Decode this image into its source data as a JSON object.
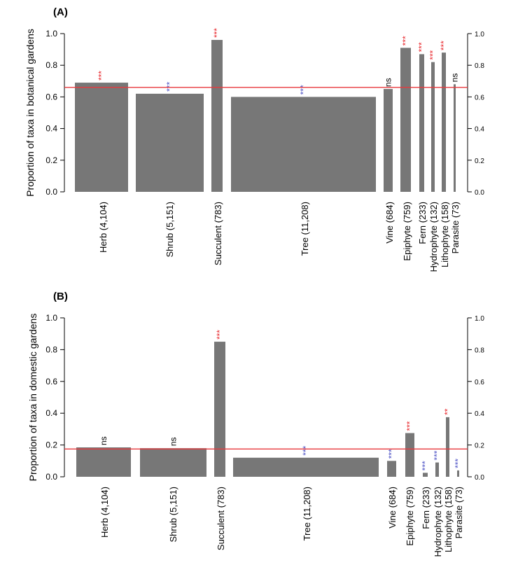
{
  "colors": {
    "bar": "#777777",
    "reference": "#e8383d",
    "sig_high": "#e8262b",
    "sig_low": "#4a4fc4",
    "sig_ns": "#000000"
  },
  "chart_data": [
    {
      "type": "bar",
      "panel_label": "(A)",
      "ylabel": "Proportion of taxa in botanical gardens",
      "ylim": [
        0,
        1
      ],
      "yticks": [
        "0.0",
        "0.2",
        "0.4",
        "0.6",
        "0.8",
        "1.0"
      ],
      "reference_line": 0.66,
      "categories": [
        "Herb (4,104)",
        "Shrub (5,151)",
        "Succulent (783)",
        "Tree (11,208)",
        "Vine (684)",
        "Epiphyte (759)",
        "Fern (233)",
        "Hydrophyte (132)",
        "Lithophyte (158)",
        "Parasite (73)"
      ],
      "sample_sizes": [
        4104,
        5151,
        783,
        11208,
        684,
        759,
        233,
        132,
        158,
        73
      ],
      "values": [
        0.69,
        0.62,
        0.96,
        0.6,
        0.65,
        0.91,
        0.87,
        0.82,
        0.88,
        0.68
      ],
      "significance": [
        "***",
        "***",
        "***",
        "***",
        "ns",
        "***",
        "***",
        "***",
        "***",
        "ns"
      ],
      "significance_dir": [
        "high",
        "low",
        "high",
        "low",
        "ns",
        "high",
        "high",
        "high",
        "high",
        "ns"
      ]
    },
    {
      "type": "bar",
      "panel_label": "(B)",
      "ylabel": "Proportion of taxa in domestic gardens",
      "ylim": [
        0,
        1
      ],
      "yticks": [
        "0.0",
        "0.2",
        "0.4",
        "0.6",
        "0.8",
        "1.0"
      ],
      "reference_line": 0.175,
      "categories": [
        "Herb (4,104)",
        "Shrub (5,151)",
        "Succulent (783)",
        "Tree (11,208)",
        "Vine (684)",
        "Epiphyte (759)",
        "Fern (233)",
        "Hydrophyte (132)",
        "Lithophyte (158)",
        "Parasite (73)"
      ],
      "sample_sizes": [
        4104,
        5151,
        783,
        11208,
        684,
        759,
        233,
        132,
        158,
        73
      ],
      "values": [
        0.185,
        0.18,
        0.85,
        0.12,
        0.1,
        0.275,
        0.025,
        0.09,
        0.375,
        0.04
      ],
      "significance": [
        "ns",
        "ns",
        "***",
        "***",
        "***",
        "***",
        "***",
        "***",
        "**",
        "***"
      ],
      "significance_dir": [
        "ns",
        "ns",
        "high",
        "low",
        "low",
        "high",
        "low",
        "low",
        "high",
        "low"
      ]
    }
  ]
}
